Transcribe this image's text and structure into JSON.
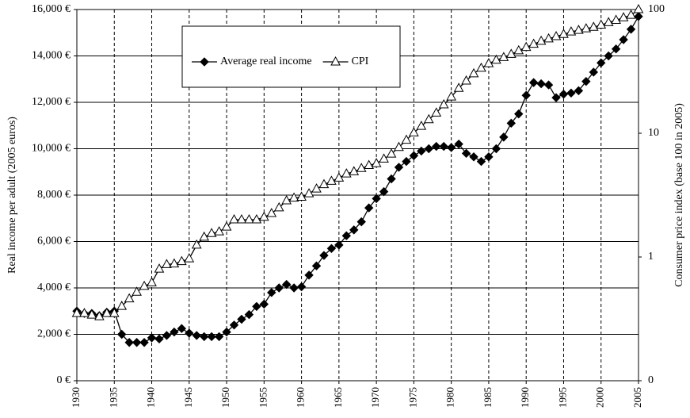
{
  "chart_data": {
    "type": "line",
    "y_label": "Real income per adult (2005 euros)",
    "y2_label": "Consumer price index (base 100 in 2005)",
    "x": [
      1930,
      1931,
      1932,
      1933,
      1934,
      1935,
      1936,
      1937,
      1938,
      1939,
      1940,
      1941,
      1942,
      1943,
      1944,
      1945,
      1946,
      1947,
      1948,
      1949,
      1950,
      1951,
      1952,
      1953,
      1954,
      1955,
      1956,
      1957,
      1958,
      1959,
      1960,
      1961,
      1962,
      1963,
      1964,
      1965,
      1966,
      1967,
      1968,
      1969,
      1970,
      1971,
      1972,
      1973,
      1974,
      1975,
      1976,
      1977,
      1978,
      1979,
      1980,
      1981,
      1982,
      1983,
      1984,
      1985,
      1986,
      1987,
      1988,
      1989,
      1990,
      1991,
      1992,
      1993,
      1994,
      1995,
      1996,
      1997,
      1998,
      1999,
      2000,
      2001,
      2002,
      2003,
      2004,
      2005
    ],
    "series": [
      {
        "name": "Average real income",
        "color": "#000000",
        "marker": "diamond",
        "values": [
          3000,
          2900,
          2900,
          2800,
          2950,
          3000,
          2000,
          1650,
          1650,
          1650,
          1850,
          1800,
          1950,
          2100,
          2250,
          2050,
          1950,
          1900,
          1900,
          1900,
          2100,
          2400,
          2650,
          2850,
          3200,
          3300,
          3800,
          4000,
          4150,
          4000,
          4050,
          4550,
          4950,
          5400,
          5700,
          5850,
          6250,
          6500,
          6850,
          7450,
          7850,
          8150,
          8700,
          9200,
          9450,
          9700,
          9900,
          10000,
          10100,
          10100,
          10050,
          10200,
          9800,
          9650,
          9450,
          9650,
          10000,
          10500,
          11100,
          11500,
          12300,
          12850,
          12800,
          12750,
          12200,
          12350,
          12400,
          12500,
          12900,
          13300,
          13700,
          14000,
          14300,
          14700,
          15150,
          15700
        ]
      },
      {
        "name": "CPI",
        "color": "#000000",
        "marker": "triangle",
        "axis": "y2",
        "values": [
          0.35,
          0.35,
          0.34,
          0.33,
          0.35,
          0.35,
          0.4,
          0.46,
          0.52,
          0.58,
          0.62,
          0.8,
          0.87,
          0.88,
          0.92,
          0.97,
          1.25,
          1.45,
          1.55,
          1.6,
          1.75,
          2.0,
          2.0,
          2.0,
          2.0,
          2.1,
          2.25,
          2.5,
          2.85,
          3.0,
          3.05,
          3.25,
          3.55,
          3.85,
          4.1,
          4.35,
          4.7,
          4.9,
          5.2,
          5.5,
          5.7,
          6.2,
          6.8,
          7.7,
          8.8,
          10.1,
          11.4,
          12.9,
          14.6,
          17.0,
          19.7,
          23.1,
          26.5,
          30.3,
          33.6,
          36.6,
          39,
          41,
          43.5,
          46.5,
          49.5,
          52.5,
          55.5,
          58,
          60.5,
          63,
          66,
          68,
          70,
          72,
          75,
          78.5,
          82,
          86,
          90,
          100
        ]
      }
    ],
    "xlim": [
      1930,
      2005
    ],
    "xticks": [
      1930,
      1935,
      1940,
      1945,
      1950,
      1955,
      1960,
      1965,
      1970,
      1975,
      1980,
      1985,
      1990,
      1995,
      2000,
      2005
    ],
    "ylim": [
      0,
      16000
    ],
    "yticks": [
      {
        "value": 0,
        "label": "0 €"
      },
      {
        "value": 2000,
        "label": "2,000 €"
      },
      {
        "value": 4000,
        "label": "4,000 €"
      },
      {
        "value": 6000,
        "label": "6,000 €"
      },
      {
        "value": 8000,
        "label": "8,000 €"
      },
      {
        "value": 10000,
        "label": "10,000 €"
      },
      {
        "value": 12000,
        "label": "12,000 €"
      },
      {
        "value": 14000,
        "label": "14,000 €"
      },
      {
        "value": 16000,
        "label": "16,000 €"
      }
    ],
    "y2lim": [
      0.1,
      100
    ],
    "y2_log": true,
    "y2ticks": [
      {
        "value": 0.1,
        "label": "0"
      },
      1,
      10,
      100
    ],
    "grid": true,
    "legend": "top-left"
  }
}
